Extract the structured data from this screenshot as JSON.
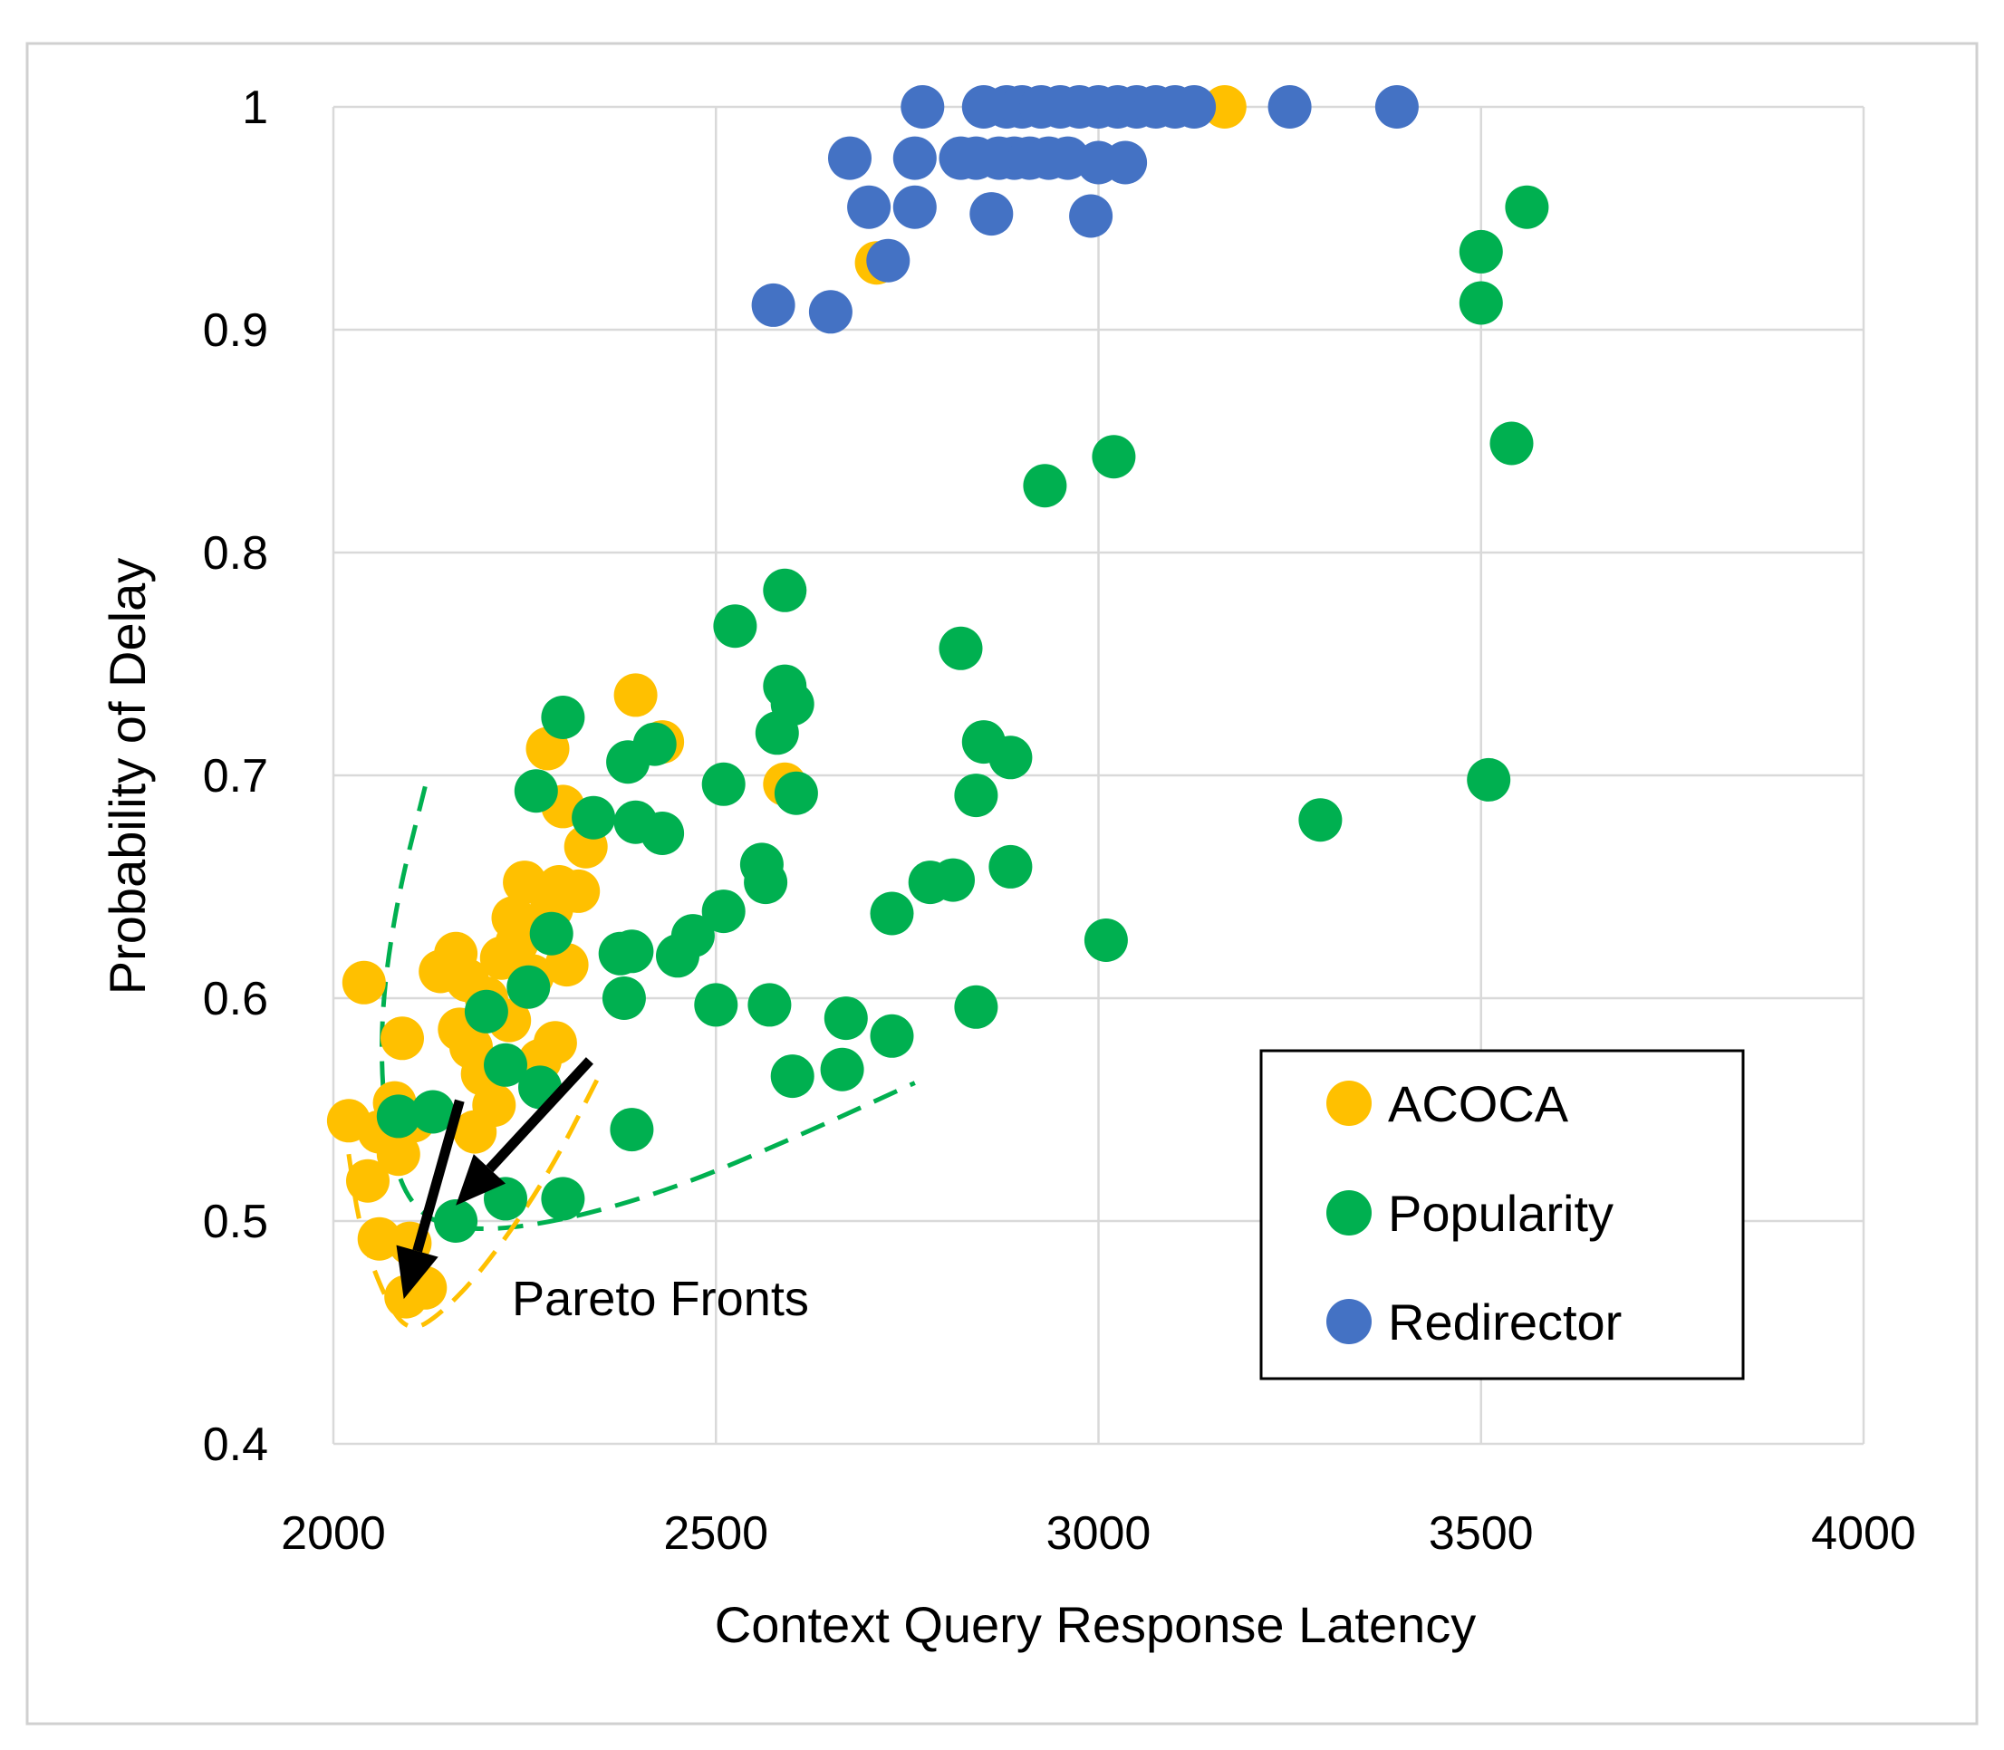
{
  "chart_data": {
    "type": "scatter",
    "title": "",
    "xlabel": "Context Query Response Latency",
    "ylabel": "Probability of Delay",
    "xlim": [
      2000,
      4000
    ],
    "ylim": [
      0.4,
      1.0
    ],
    "xticks": [
      2000,
      2500,
      3000,
      3500,
      4000
    ],
    "yticks": [
      0.4,
      0.5,
      0.6,
      0.7,
      0.8,
      0.9,
      1.0
    ],
    "xtick_labels": [
      "2000",
      "2500",
      "3000",
      "3500",
      "4000"
    ],
    "ytick_labels": [
      "0.4",
      "0.5",
      "0.6",
      "0.7",
      "0.8",
      "0.9",
      "1"
    ],
    "grid": true,
    "legend_position": "bottom-right",
    "series": [
      {
        "name": "ACOCA",
        "color": "#FFC000",
        "points": [
          [
            2020,
            0.545
          ],
          [
            2040,
            0.607
          ],
          [
            2045,
            0.518
          ],
          [
            2060,
            0.54
          ],
          [
            2060,
            0.492
          ],
          [
            2080,
            0.553
          ],
          [
            2085,
            0.53
          ],
          [
            2090,
            0.582
          ],
          [
            2095,
            0.466
          ],
          [
            2100,
            0.49
          ],
          [
            2105,
            0.545
          ],
          [
            2120,
            0.47
          ],
          [
            2140,
            0.612
          ],
          [
            2160,
            0.62
          ],
          [
            2165,
            0.586
          ],
          [
            2175,
            0.608
          ],
          [
            2180,
            0.578
          ],
          [
            2185,
            0.54
          ],
          [
            2195,
            0.566
          ],
          [
            2200,
            0.6
          ],
          [
            2210,
            0.552
          ],
          [
            2220,
            0.618
          ],
          [
            2230,
            0.59
          ],
          [
            2235,
            0.636
          ],
          [
            2240,
            0.625
          ],
          [
            2250,
            0.652
          ],
          [
            2260,
            0.61
          ],
          [
            2270,
            0.572
          ],
          [
            2280,
            0.712
          ],
          [
            2285,
            0.64
          ],
          [
            2290,
            0.58
          ],
          [
            2295,
            0.65
          ],
          [
            2300,
            0.686
          ],
          [
            2305,
            0.615
          ],
          [
            2320,
            0.648
          ],
          [
            2330,
            0.668
          ],
          [
            2395,
            0.736
          ],
          [
            2430,
            0.715
          ],
          [
            2590,
            0.696
          ],
          [
            2710,
            0.93
          ],
          [
            3165,
            1.0
          ]
        ]
      },
      {
        "name": "Popularity",
        "color": "#00B050",
        "points": [
          [
            2085,
            0.547
          ],
          [
            2130,
            0.549
          ],
          [
            2160,
            0.5
          ],
          [
            2200,
            0.594
          ],
          [
            2225,
            0.51
          ],
          [
            2225,
            0.57
          ],
          [
            2255,
            0.605
          ],
          [
            2265,
            0.693
          ],
          [
            2270,
            0.56
          ],
          [
            2285,
            0.629
          ],
          [
            2300,
            0.51
          ],
          [
            2300,
            0.726
          ],
          [
            2340,
            0.681
          ],
          [
            2375,
            0.62
          ],
          [
            2380,
            0.6
          ],
          [
            2385,
            0.706
          ],
          [
            2390,
            0.541
          ],
          [
            2390,
            0.621
          ],
          [
            2395,
            0.679
          ],
          [
            2420,
            0.714
          ],
          [
            2430,
            0.674
          ],
          [
            2450,
            0.619
          ],
          [
            2470,
            0.628
          ],
          [
            2500,
            0.597
          ],
          [
            2510,
            0.639
          ],
          [
            2510,
            0.696
          ],
          [
            2525,
            0.767
          ],
          [
            2560,
            0.66
          ],
          [
            2565,
            0.652
          ],
          [
            2570,
            0.597
          ],
          [
            2580,
            0.719
          ],
          [
            2590,
            0.783
          ],
          [
            2590,
            0.74
          ],
          [
            2600,
            0.732
          ],
          [
            2600,
            0.565
          ],
          [
            2605,
            0.692
          ],
          [
            2665,
            0.568
          ],
          [
            2670,
            0.591
          ],
          [
            2730,
            0.638
          ],
          [
            2730,
            0.583
          ],
          [
            2780,
            0.652
          ],
          [
            2810,
            0.653
          ],
          [
            2820,
            0.757
          ],
          [
            2840,
            0.596
          ],
          [
            2840,
            0.691
          ],
          [
            2850,
            0.715
          ],
          [
            2885,
            0.708
          ],
          [
            2885,
            0.659
          ],
          [
            2930,
            0.83
          ],
          [
            3010,
            0.626
          ],
          [
            3020,
            0.843
          ],
          [
            3290,
            0.68
          ],
          [
            3500,
            0.935
          ],
          [
            3500,
            0.912
          ],
          [
            3510,
            0.698
          ],
          [
            3540,
            0.849
          ],
          [
            3560,
            0.955
          ]
        ]
      },
      {
        "name": "Redirector",
        "color": "#4472C4",
        "points": [
          [
            2575,
            0.911
          ],
          [
            2650,
            0.908
          ],
          [
            2675,
            0.977
          ],
          [
            2700,
            0.955
          ],
          [
            2725,
            0.931
          ],
          [
            2760,
            0.955
          ],
          [
            2760,
            0.977
          ],
          [
            2770,
            1.0
          ],
          [
            2820,
            0.977
          ],
          [
            2840,
            0.977
          ],
          [
            2850,
            1.0
          ],
          [
            2860,
            0.952
          ],
          [
            2870,
            0.977
          ],
          [
            2880,
            1.0
          ],
          [
            2890,
            0.977
          ],
          [
            2900,
            1.0
          ],
          [
            2910,
            0.977
          ],
          [
            2925,
            1.0
          ],
          [
            2935,
            0.977
          ],
          [
            2950,
            1.0
          ],
          [
            2960,
            0.977
          ],
          [
            2975,
            1.0
          ],
          [
            2990,
            0.951
          ],
          [
            3000,
            1.0
          ],
          [
            3000,
            0.975
          ],
          [
            3025,
            1.0
          ],
          [
            3035,
            0.975
          ],
          [
            3050,
            1.0
          ],
          [
            3075,
            1.0
          ],
          [
            3100,
            1.0
          ],
          [
            3125,
            1.0
          ],
          [
            3250,
            1.0
          ],
          [
            3390,
            1.0
          ]
        ]
      }
    ],
    "annotations": {
      "pareto_label": "Pareto Fronts"
    }
  }
}
